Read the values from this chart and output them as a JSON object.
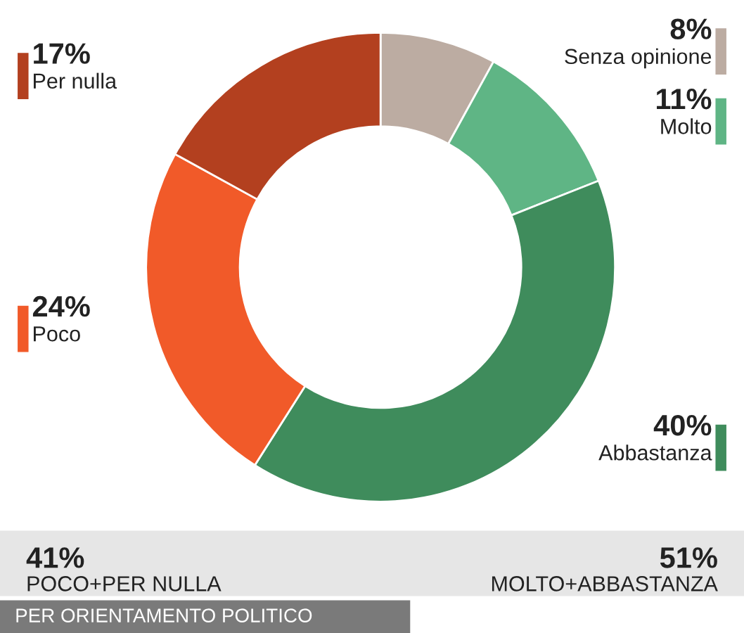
{
  "chart_data": {
    "type": "donut",
    "categories": [
      "Senza opinione",
      "Molto",
      "Abbastanza",
      "Poco",
      "Per nulla"
    ],
    "values": [
      8,
      11,
      40,
      24,
      17
    ],
    "value_labels": [
      "8%",
      "11%",
      "40%",
      "24%",
      "17%"
    ],
    "legend": "right",
    "colors": [
      "#bcaca2",
      "#5fb585",
      "#3f8c5c",
      "#f15a29",
      "#b3401f"
    ],
    "annotations": [
      "41%",
      "POCO+PER NULLA",
      "51%",
      "MOLTO+ABBASTANZA",
      "PER ORIENTAMENTO POLITICO"
    ]
  }
}
